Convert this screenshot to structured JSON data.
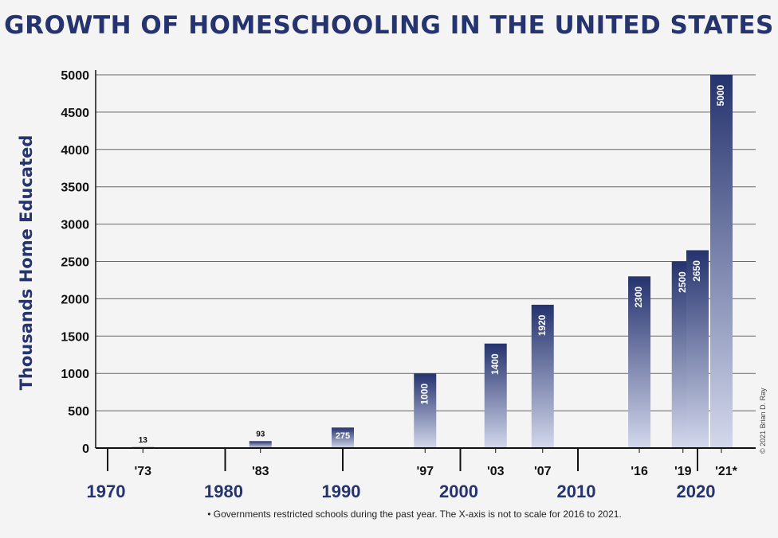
{
  "chart_data": {
    "type": "bar",
    "title": "GROWTH OF HOMESCHOOLING IN THE UNITED STATES",
    "ylabel": "Thousands Home Educated",
    "xlabel": "",
    "ylim": [
      0,
      5000
    ],
    "yticks": [
      0,
      500,
      1000,
      1500,
      2000,
      2500,
      3000,
      3500,
      4000,
      4500,
      5000
    ],
    "grid": true,
    "bar_color_top": "#25336e",
    "bar_color_bottom": "#d3d8ec",
    "title_color": "#25336e",
    "bars": [
      {
        "year": 1973,
        "label": "'73",
        "value": 13,
        "value_label": "13"
      },
      {
        "year": 1983,
        "label": "'83",
        "value": 93,
        "value_label": "93"
      },
      {
        "year": 1990,
        "label": "",
        "value": 275,
        "value_label": "275"
      },
      {
        "year": 1997,
        "label": "'97",
        "value": 1000,
        "value_label": "1000"
      },
      {
        "year": 2003,
        "label": "'03",
        "value": 1400,
        "value_label": "1400"
      },
      {
        "year": 2007,
        "label": "'07",
        "value": 1920,
        "value_label": "1920"
      },
      {
        "year": 2016,
        "label": "'16",
        "value": 2300,
        "value_label": "2300"
      },
      {
        "year": 2019,
        "label": "'19",
        "value": 2500,
        "value_label": "2500"
      },
      {
        "year": 2020,
        "label": "",
        "value": 2650,
        "value_label": "2650"
      },
      {
        "year": 2021,
        "label": "'21*",
        "value": 5000,
        "value_label": "5000"
      }
    ],
    "decades": [
      1970,
      1980,
      1990,
      2000,
      2010,
      2020
    ],
    "decade_labels": [
      "1970",
      "1980",
      "1990",
      "2000",
      "2010",
      "2020"
    ]
  },
  "footnote": "• Governments restricted schools during the past year. The X-axis is not to scale for 2016 to 2021.",
  "copyright": "© 2021 Brian D. Ray"
}
